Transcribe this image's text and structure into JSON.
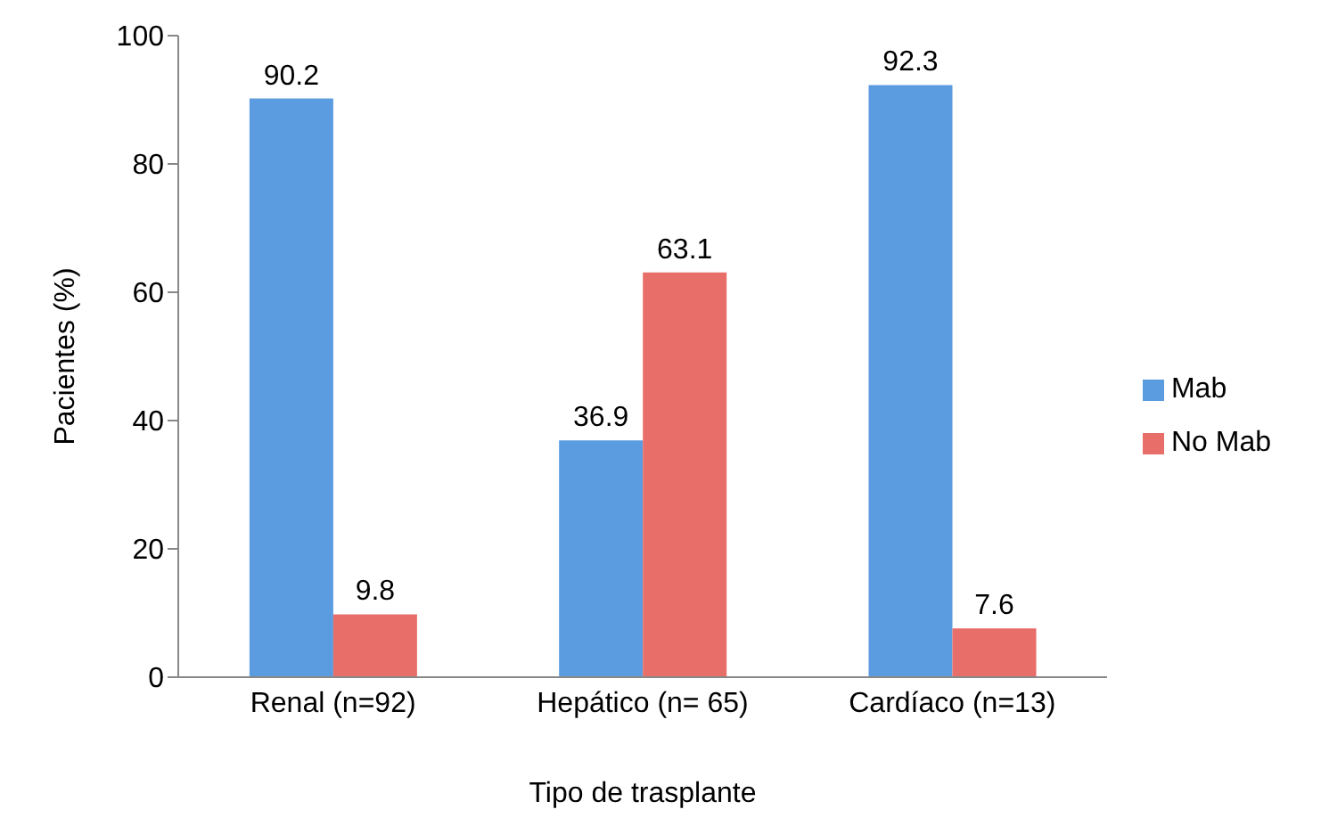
{
  "chart_data": {
    "type": "bar",
    "xlabel": "Tipo de trasplante",
    "ylabel": "Pacientes (%)",
    "categories": [
      "Renal (n=92)",
      "Hepático (n= 65)",
      "Cardíaco (n=13)"
    ],
    "series": [
      {
        "name": "Mab",
        "color": "#5b9be0",
        "values": [
          90.2,
          36.9,
          92.3
        ]
      },
      {
        "name": "No Mab",
        "color": "#e86f69",
        "values": [
          9.8,
          63.1,
          7.6
        ]
      }
    ],
    "ylim": [
      0,
      100
    ],
    "yticks": [
      0,
      20,
      40,
      60,
      80,
      100
    ],
    "grid": false,
    "legend": "right",
    "data_labels": true
  }
}
